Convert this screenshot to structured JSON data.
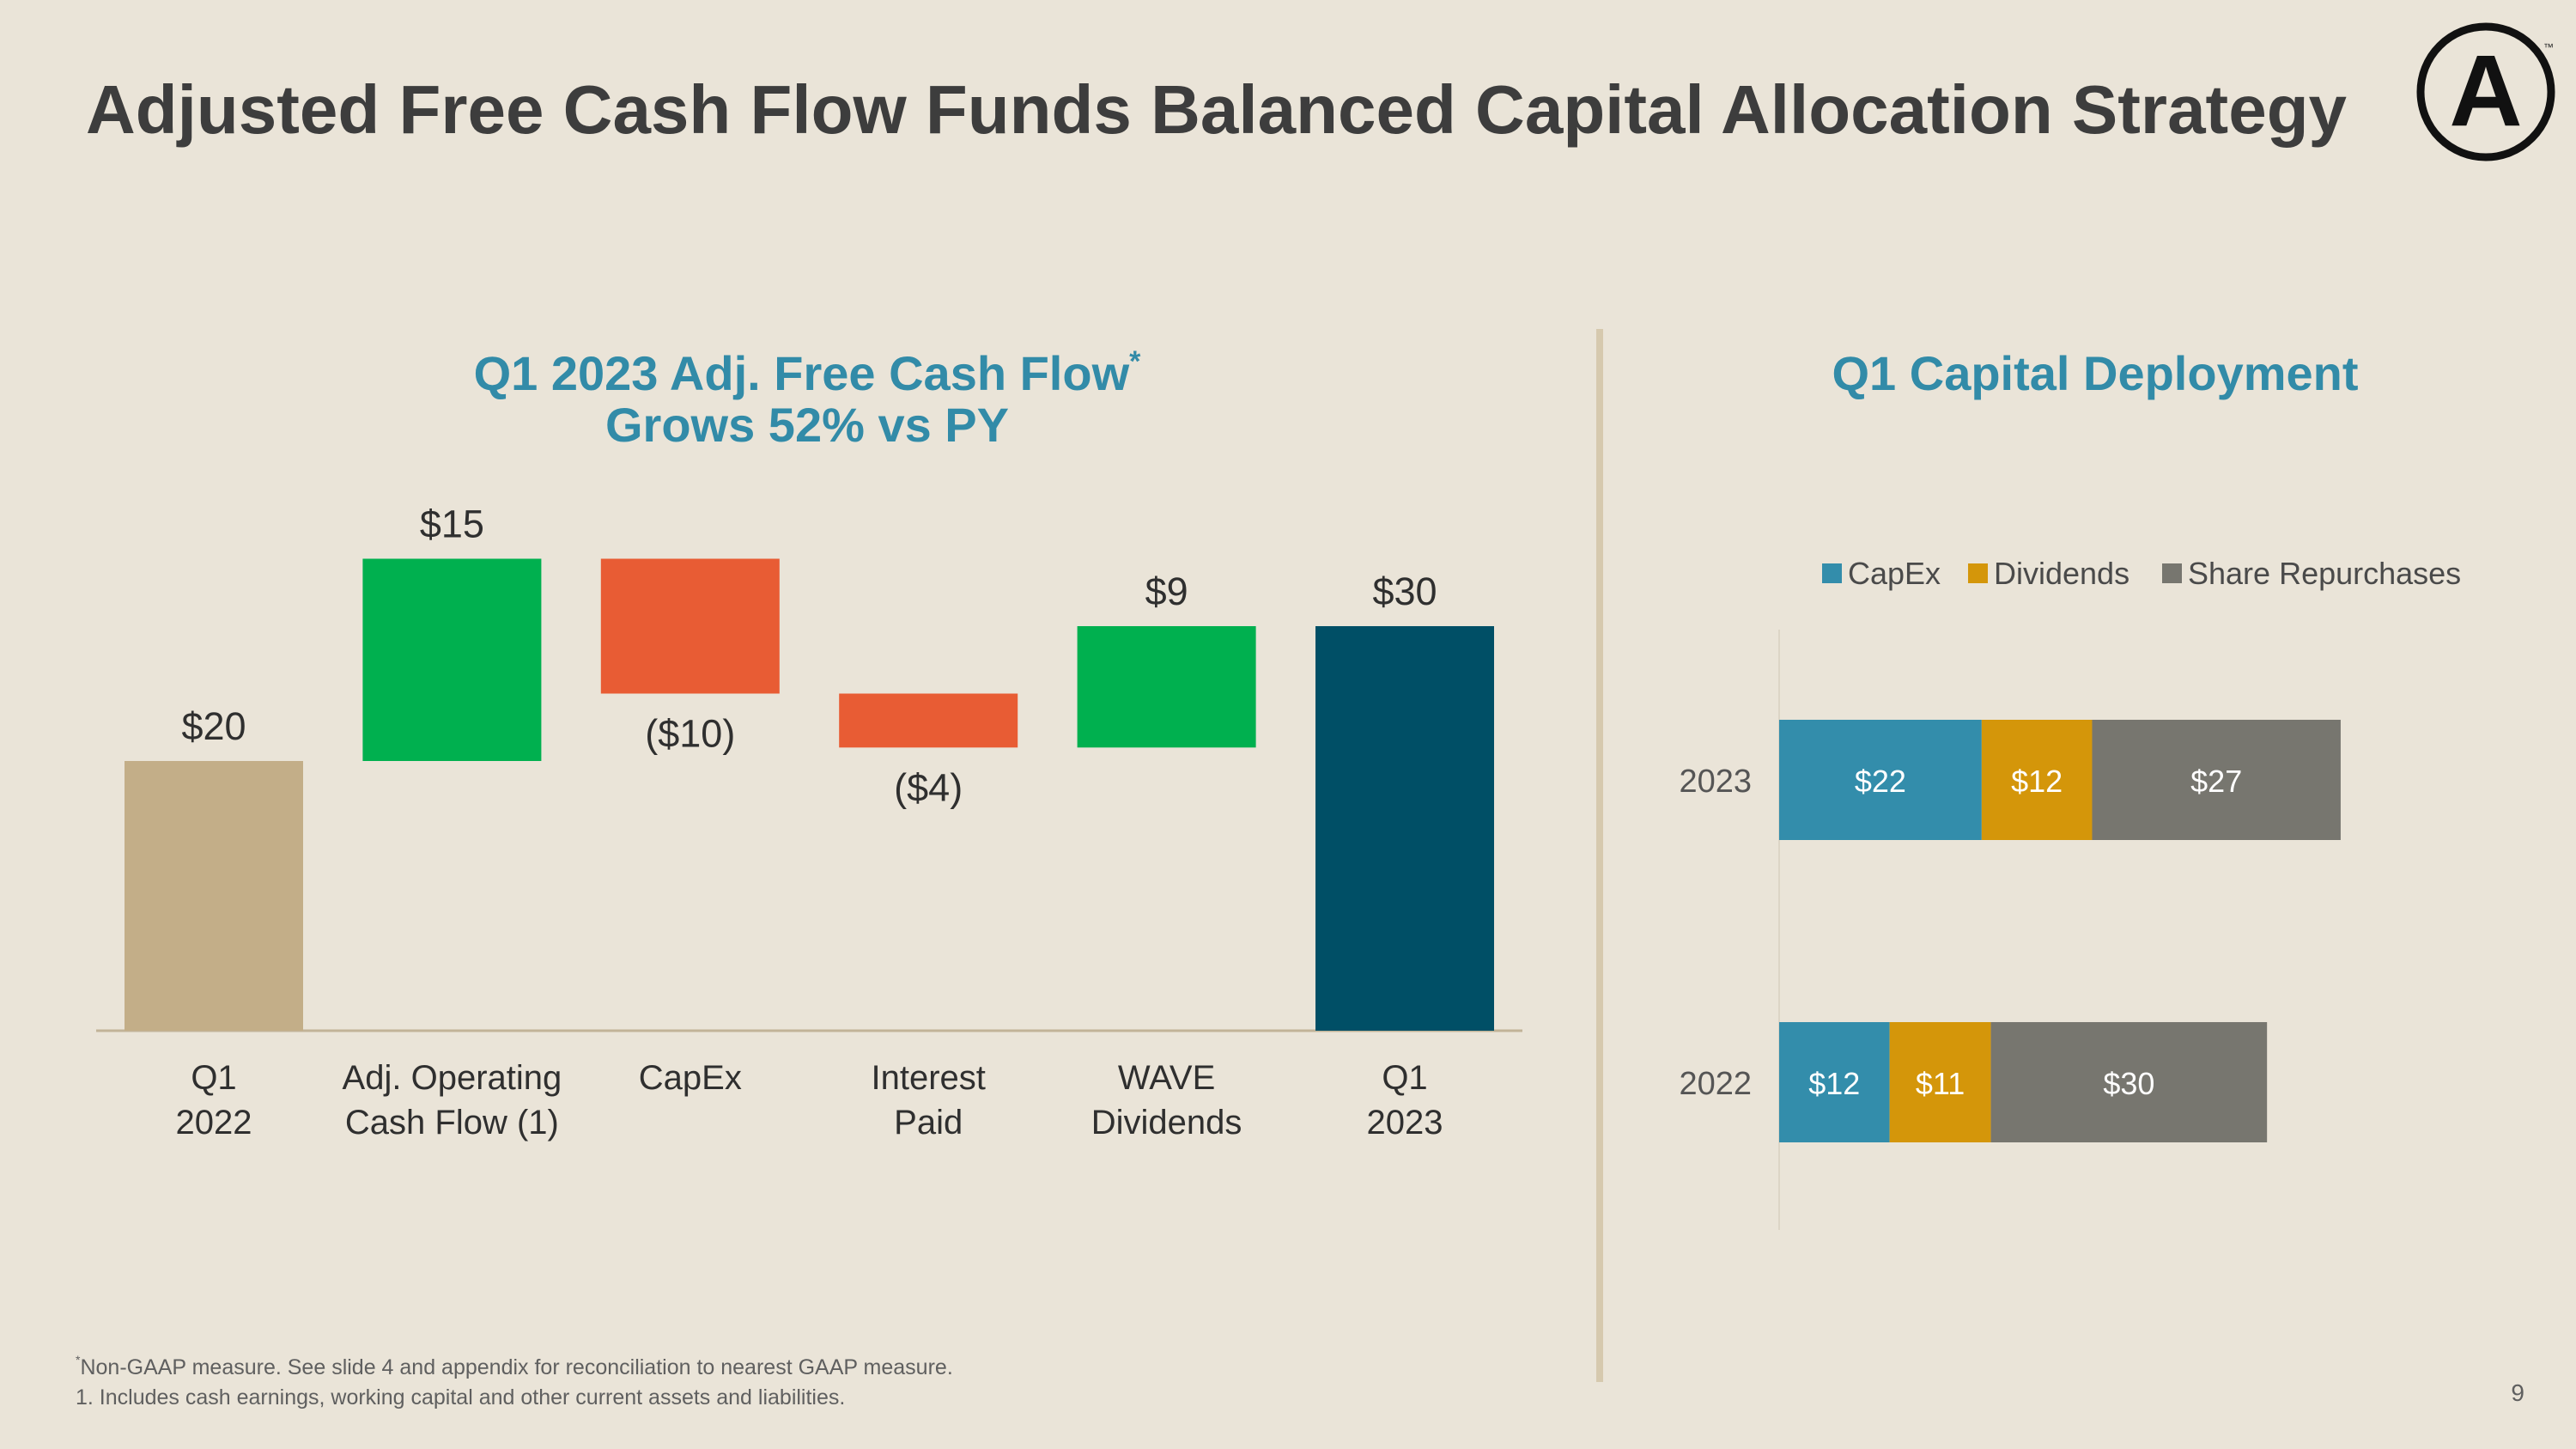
{
  "page": {
    "title": "Adjusted Free Cash Flow Funds Balanced Capital Allocation Strategy",
    "page_number": "9",
    "footnotes": {
      "marker": "*",
      "note1": "Non-GAAP measure. See slide 4 and appendix for reconciliation to nearest GAAP measure.",
      "note2": "1. Includes cash earnings, working capital and other current assets and liabilities."
    }
  },
  "logo": {
    "icon": "armstrong-a-logo-icon",
    "letter": "A",
    "trademark": "™"
  },
  "colors": {
    "background": "#EAE4D8",
    "title_text": "#3d3d3d",
    "chart_title": "#328BA8",
    "start_bar": "#C3AE88",
    "increase": "#00B04F",
    "decrease": "#E85C34",
    "total": "#004F66",
    "capex": "#338DAB",
    "dividends": "#D4960A",
    "share_repurchases": "#77766F",
    "divider": "#D6C9AE"
  },
  "chart_data": [
    {
      "type": "bar",
      "subtype": "waterfall",
      "title_line1": "Q1 2023 Adj. Free Cash Flow",
      "title_marker": "*",
      "title_line2": "Grows 52% vs PY",
      "categories": [
        [
          "Q1",
          "2022"
        ],
        [
          "Adj. Operating",
          "Cash Flow (1)"
        ],
        [
          "CapEx"
        ],
        [
          "Interest",
          "Paid"
        ],
        [
          "WAVE",
          "Dividends"
        ],
        [
          "Q1",
          "2023"
        ]
      ],
      "values": [
        20,
        15,
        -10,
        -4,
        9,
        30
      ],
      "kinds": [
        "total",
        "increase",
        "decrease",
        "decrease",
        "increase",
        "total"
      ],
      "data_labels": [
        "$20",
        "$15",
        "($10)",
        "($4)",
        "$9",
        "$30"
      ],
      "grid": false,
      "axis_line": true
    },
    {
      "type": "bar",
      "subtype": "horizontal-stacked",
      "title": "Q1 Capital Deployment",
      "categories": [
        "2023",
        "2022"
      ],
      "series": [
        {
          "name": "CapEx",
          "values": [
            22,
            12
          ],
          "labels": [
            "$22",
            "$12"
          ]
        },
        {
          "name": "Dividends",
          "values": [
            12,
            11
          ],
          "labels": [
            "$12",
            "$11"
          ]
        },
        {
          "name": "Share Repurchases",
          "values": [
            27,
            30
          ],
          "labels": [
            "$27",
            "$30"
          ]
        }
      ],
      "legend_position": "top",
      "grid": false
    }
  ]
}
